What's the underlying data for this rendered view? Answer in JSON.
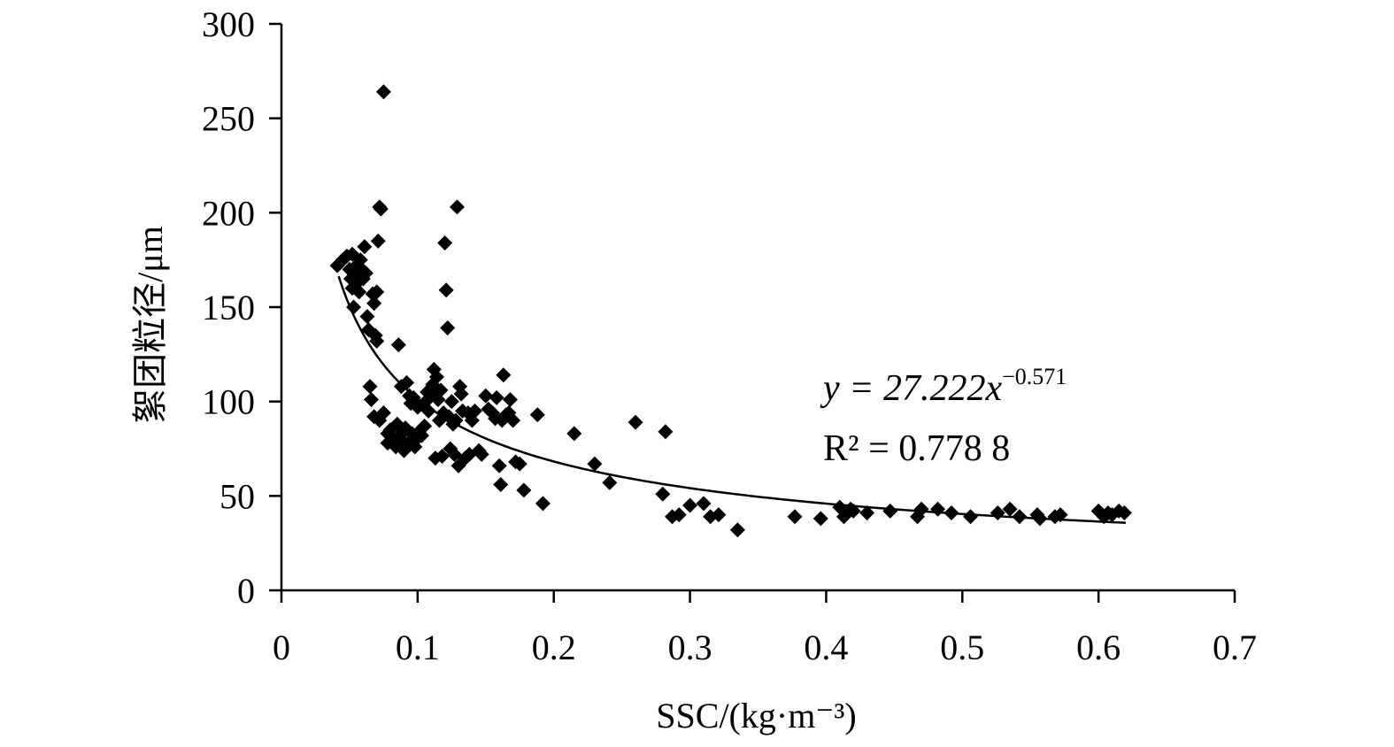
{
  "chart_data": {
    "type": "scatter",
    "xlabel": "SSC/(kg·m⁻³)",
    "ylabel": "絮团粒径/μm",
    "xlim": [
      0,
      0.7
    ],
    "ylim": [
      0,
      300
    ],
    "xticks": [
      "0",
      "0.1",
      "0.2",
      "0.3",
      "0.4",
      "0.5",
      "0.6",
      "0.7"
    ],
    "yticks": [
      "0",
      "50",
      "100",
      "150",
      "200",
      "250",
      "300"
    ],
    "grid": false,
    "legend": "none",
    "marker": "diamond",
    "color": "#000000",
    "fit": {
      "type": "power",
      "a": 27.222,
      "b": -0.571,
      "x_range": [
        0.042,
        0.62
      ],
      "equation_prefix": "y = 27.222x",
      "equation_exponent": "−0.571",
      "r2_label": "R² = 0.778 8"
    },
    "points": [
      [
        0.041,
        172
      ],
      [
        0.045,
        175
      ],
      [
        0.048,
        177
      ],
      [
        0.05,
        170
      ],
      [
        0.051,
        165
      ],
      [
        0.052,
        160
      ],
      [
        0.052,
        178
      ],
      [
        0.053,
        150
      ],
      [
        0.054,
        168
      ],
      [
        0.055,
        172
      ],
      [
        0.056,
        163
      ],
      [
        0.057,
        158
      ],
      [
        0.058,
        175
      ],
      [
        0.059,
        170
      ],
      [
        0.06,
        165
      ],
      [
        0.061,
        182
      ],
      [
        0.062,
        168
      ],
      [
        0.063,
        145
      ],
      [
        0.064,
        138
      ],
      [
        0.065,
        108
      ],
      [
        0.066,
        101
      ],
      [
        0.067,
        157
      ],
      [
        0.068,
        152
      ],
      [
        0.069,
        135
      ],
      [
        0.07,
        132
      ],
      [
        0.07,
        158
      ],
      [
        0.071,
        185
      ],
      [
        0.072,
        203
      ],
      [
        0.073,
        202
      ],
      [
        0.075,
        264
      ],
      [
        0.068,
        92
      ],
      [
        0.072,
        90
      ],
      [
        0.075,
        94
      ],
      [
        0.078,
        83
      ],
      [
        0.078,
        78
      ],
      [
        0.08,
        85
      ],
      [
        0.082,
        80
      ],
      [
        0.084,
        76
      ],
      [
        0.085,
        88
      ],
      [
        0.086,
        130
      ],
      [
        0.087,
        82
      ],
      [
        0.088,
        108
      ],
      [
        0.089,
        79
      ],
      [
        0.09,
        74
      ],
      [
        0.091,
        86
      ],
      [
        0.092,
        110
      ],
      [
        0.093,
        78
      ],
      [
        0.094,
        103
      ],
      [
        0.095,
        99
      ],
      [
        0.096,
        83
      ],
      [
        0.097,
        102
      ],
      [
        0.098,
        76
      ],
      [
        0.099,
        80
      ],
      [
        0.1,
        97
      ],
      [
        0.101,
        84
      ],
      [
        0.103,
        82
      ],
      [
        0.105,
        87
      ],
      [
        0.106,
        100
      ],
      [
        0.107,
        105
      ],
      [
        0.108,
        95
      ],
      [
        0.11,
        104
      ],
      [
        0.111,
        109
      ],
      [
        0.112,
        117
      ],
      [
        0.113,
        70
      ],
      [
        0.114,
        113
      ],
      [
        0.115,
        101
      ],
      [
        0.116,
        90
      ],
      [
        0.117,
        106
      ],
      [
        0.118,
        71
      ],
      [
        0.119,
        94
      ],
      [
        0.12,
        184
      ],
      [
        0.121,
        159
      ],
      [
        0.122,
        139
      ],
      [
        0.123,
        92
      ],
      [
        0.124,
        75
      ],
      [
        0.125,
        100
      ],
      [
        0.126,
        88
      ],
      [
        0.127,
        72
      ],
      [
        0.128,
        90
      ],
      [
        0.129,
        203
      ],
      [
        0.13,
        66
      ],
      [
        0.131,
        108
      ],
      [
        0.132,
        104
      ],
      [
        0.133,
        95
      ],
      [
        0.135,
        70
      ],
      [
        0.137,
        94
      ],
      [
        0.138,
        72
      ],
      [
        0.14,
        90
      ],
      [
        0.142,
        95
      ],
      [
        0.145,
        74
      ],
      [
        0.147,
        72
      ],
      [
        0.15,
        103
      ],
      [
        0.152,
        96
      ],
      [
        0.155,
        94
      ],
      [
        0.157,
        91
      ],
      [
        0.158,
        102
      ],
      [
        0.16,
        66
      ],
      [
        0.161,
        56
      ],
      [
        0.162,
        90
      ],
      [
        0.163,
        114
      ],
      [
        0.165,
        93
      ],
      [
        0.167,
        94
      ],
      [
        0.168,
        101
      ],
      [
        0.17,
        90
      ],
      [
        0.172,
        68
      ],
      [
        0.175,
        67
      ],
      [
        0.178,
        53
      ],
      [
        0.188,
        93
      ],
      [
        0.192,
        46
      ],
      [
        0.215,
        83
      ],
      [
        0.23,
        67
      ],
      [
        0.241,
        57
      ],
      [
        0.26,
        89
      ],
      [
        0.28,
        51
      ],
      [
        0.282,
        84
      ],
      [
        0.287,
        39
      ],
      [
        0.292,
        40
      ],
      [
        0.3,
        45
      ],
      [
        0.31,
        46
      ],
      [
        0.315,
        39
      ],
      [
        0.321,
        40
      ],
      [
        0.335,
        32
      ],
      [
        0.377,
        39
      ],
      [
        0.396,
        38
      ],
      [
        0.41,
        44
      ],
      [
        0.413,
        39
      ],
      [
        0.418,
        43
      ],
      [
        0.42,
        42
      ],
      [
        0.43,
        41
      ],
      [
        0.447,
        42
      ],
      [
        0.467,
        39
      ],
      [
        0.47,
        43
      ],
      [
        0.482,
        43
      ],
      [
        0.492,
        41
      ],
      [
        0.506,
        39
      ],
      [
        0.526,
        41
      ],
      [
        0.535,
        43
      ],
      [
        0.542,
        39
      ],
      [
        0.555,
        40
      ],
      [
        0.557,
        38
      ],
      [
        0.568,
        39
      ],
      [
        0.572,
        40
      ],
      [
        0.6,
        42
      ],
      [
        0.604,
        39
      ],
      [
        0.607,
        41
      ],
      [
        0.61,
        40
      ],
      [
        0.615,
        42
      ],
      [
        0.619,
        41
      ]
    ]
  }
}
